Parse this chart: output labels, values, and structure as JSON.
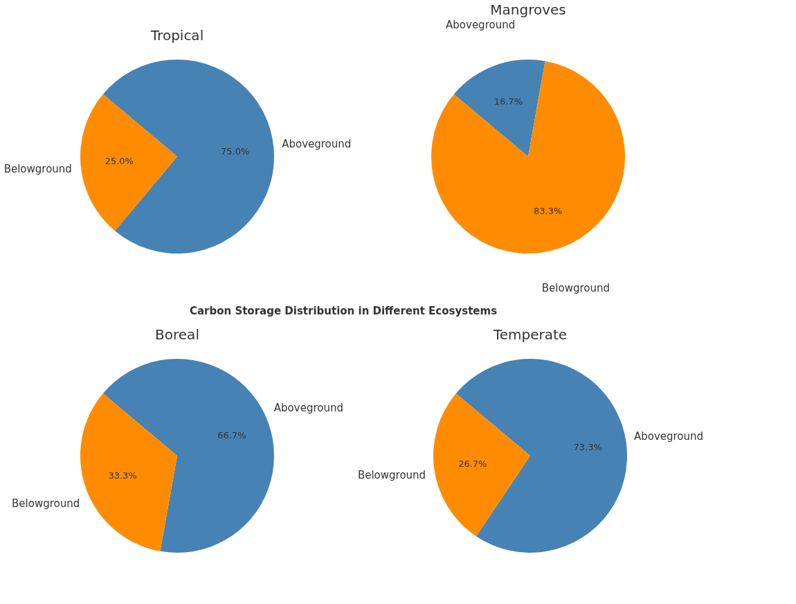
{
  "chart_data": [
    {
      "type": "pie",
      "title": "Tropical",
      "categories": [
        "Aboveground",
        "Belowground"
      ],
      "values": [
        75.0,
        25.0
      ],
      "colors": [
        "#4682b4",
        "#ff8c00"
      ],
      "value_labels": [
        "75.0%",
        "25.0%"
      ]
    },
    {
      "type": "pie",
      "title": "Mangroves",
      "categories": [
        "Aboveground",
        "Belowground"
      ],
      "values": [
        16.7,
        83.3
      ],
      "colors": [
        "#4682b4",
        "#ff8c00"
      ],
      "value_labels": [
        "16.7%",
        "83.3%"
      ]
    },
    {
      "type": "other",
      "title": "Carbon Storage Distribution in Different Ecosystems"
    },
    {
      "type": "pie",
      "title": "Boreal",
      "categories": [
        "Aboveground",
        "Belowground"
      ],
      "values": [
        66.7,
        33.3
      ],
      "colors": [
        "#4682b4",
        "#ff8c00"
      ],
      "value_labels": [
        "66.7%",
        "33.3%"
      ]
    },
    {
      "type": "pie",
      "title": "Temperate",
      "categories": [
        "Aboveground",
        "Belowground"
      ],
      "values": [
        73.3,
        26.7
      ],
      "colors": [
        "#4682b4",
        "#ff8c00"
      ],
      "value_labels": [
        "73.3%",
        "26.7%"
      ]
    }
  ]
}
